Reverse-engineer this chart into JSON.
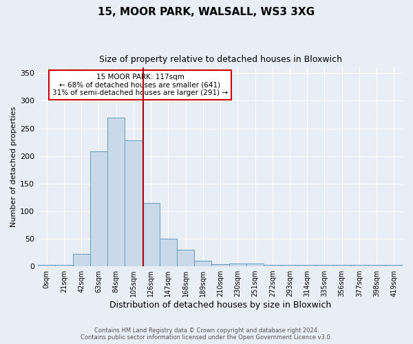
{
  "title1": "15, MOOR PARK, WALSALL, WS3 3XG",
  "title2": "Size of property relative to detached houses in Bloxwich",
  "xlabel": "Distribution of detached houses by size in Bloxwich",
  "ylabel": "Number of detached properties",
  "bin_labels": [
    "0sqm",
    "21sqm",
    "42sqm",
    "63sqm",
    "84sqm",
    "105sqm",
    "126sqm",
    "147sqm",
    "168sqm",
    "189sqm",
    "210sqm",
    "230sqm",
    "251sqm",
    "272sqm",
    "293sqm",
    "314sqm",
    "335sqm",
    "356sqm",
    "377sqm",
    "398sqm",
    "419sqm"
  ],
  "bar_heights": [
    2,
    2,
    22,
    208,
    270,
    228,
    115,
    50,
    30,
    10,
    4,
    5,
    5,
    2,
    2,
    3,
    2,
    2,
    2,
    2,
    3
  ],
  "bar_color": "#c9d9e8",
  "bar_edge_color": "#6699bb",
  "property_size": 117,
  "bin_width": 21,
  "bin_starts": [
    0,
    21,
    42,
    63,
    84,
    105,
    126,
    147,
    168,
    189,
    210,
    230,
    251,
    272,
    293,
    314,
    335,
    356,
    377,
    398,
    419
  ],
  "red_line_color": "#aa0000",
  "annotation_line1": "15 MOOR PARK: 117sqm",
  "annotation_line2": "← 68% of detached houses are smaller (641)",
  "annotation_line3": "31% of semi-detached houses are larger (291) →",
  "annotation_box_color": "#ffffff",
  "annotation_box_edge": "#cc0000",
  "ylim": [
    0,
    360
  ],
  "yticks": [
    0,
    50,
    100,
    150,
    200,
    250,
    300,
    350
  ],
  "footer1": "Contains HM Land Registry data © Crown copyright and database right 2024.",
  "footer2": "Contains public sector information licensed under the Open Government Licence v3.0.",
  "bg_color": "#e8eef5",
  "plot_bg_color": "#e8eef5"
}
